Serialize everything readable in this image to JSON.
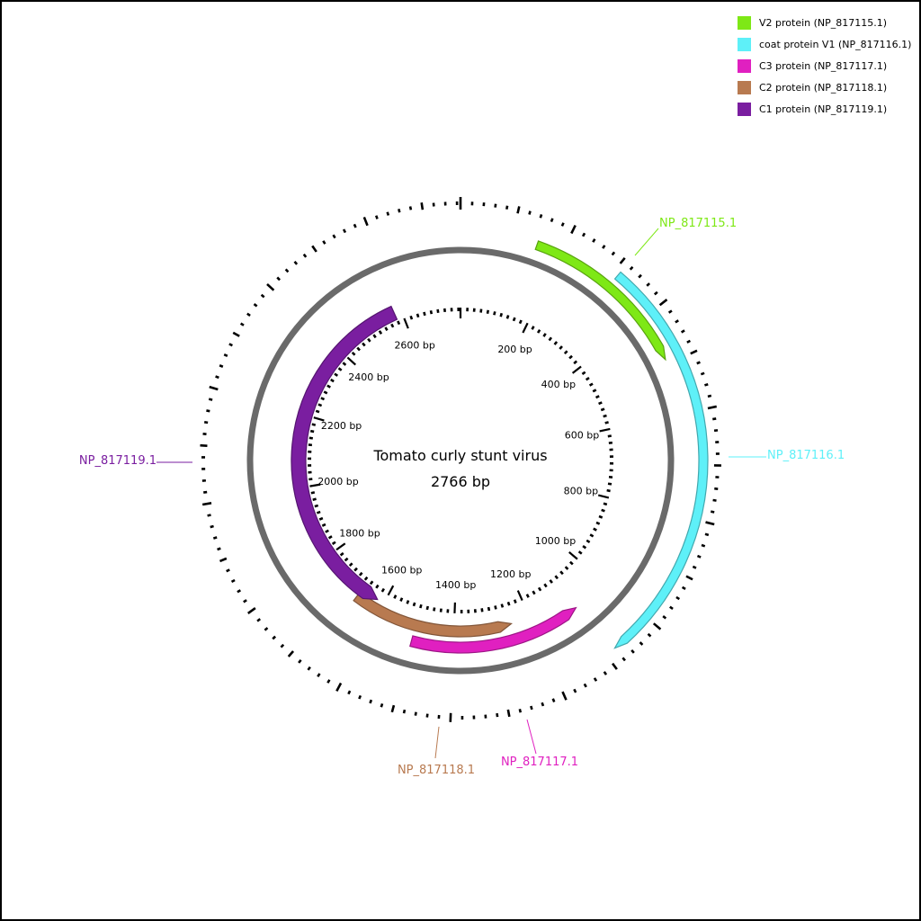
{
  "title": "Tomato curly stunt virus",
  "length_text": "2766 bp",
  "genome_length": 2766,
  "legend": [
    {
      "label": "V2 protein (NP_817115.1)",
      "color": "#7ee816"
    },
    {
      "label": "coat protein V1 (NP_817116.1)",
      "color": "#5ef0f8"
    },
    {
      "label": "C3 protein (NP_817117.1)",
      "color": "#e020c0"
    },
    {
      "label": "C2 protein (NP_817118.1)",
      "color": "#b87a50"
    },
    {
      "label": "C1 protein (NP_817119.1)",
      "color": "#7a1ea0"
    }
  ],
  "features": [
    {
      "id": "NP_817115.1",
      "label": "NP_817115.1",
      "color": "#7ee816",
      "start": 150,
      "end": 490,
      "strand": "+",
      "track": "outer"
    },
    {
      "id": "NP_817116.1",
      "label": "NP_817116.1",
      "color": "#5ef0f8",
      "start": 310,
      "end": 1080,
      "strand": "+",
      "track": "outer"
    },
    {
      "id": "NP_817117.1",
      "label": "NP_817117.1",
      "color": "#e020c0",
      "start": 1090,
      "end": 1500,
      "strand": "-",
      "track": "inner"
    },
    {
      "id": "NP_817118.1",
      "label": "NP_817118.1",
      "color": "#b87a50",
      "start": 1250,
      "end": 1670,
      "strand": "-",
      "track": "inner"
    },
    {
      "id": "NP_817119.1",
      "label": "NP_817119.1",
      "color": "#7a1ea0",
      "start": 1620,
      "end": 2580,
      "strand": "-",
      "track": "inner"
    }
  ],
  "feature_labels": [
    {
      "id": "NP_817115.1",
      "text": "NP_817115.1",
      "color": "#7ee816",
      "position_bp": 300
    },
    {
      "id": "NP_817116.1",
      "text": "NP_817116.1",
      "color": "#5ef0f8",
      "position_bp": 695
    },
    {
      "id": "NP_817117.1",
      "text": "NP_817117.1",
      "color": "#e020c0",
      "position_bp": 1295
    },
    {
      "id": "NP_817118.1",
      "text": "NP_817118.1",
      "color": "#b87a50",
      "position_bp": 1410
    },
    {
      "id": "NP_817119.1",
      "text": "NP_817119.1",
      "color": "#7a1ea0",
      "position_bp": 2075
    }
  ],
  "inner_tick_labels": [
    "200 bp",
    "400 bp",
    "600 bp",
    "800 bp",
    "1000 bp",
    "1200 bp",
    "1400 bp",
    "1600 bp",
    "1800 bp",
    "2000 bp",
    "2200 bp",
    "2400 bp",
    "2600 bp"
  ]
}
